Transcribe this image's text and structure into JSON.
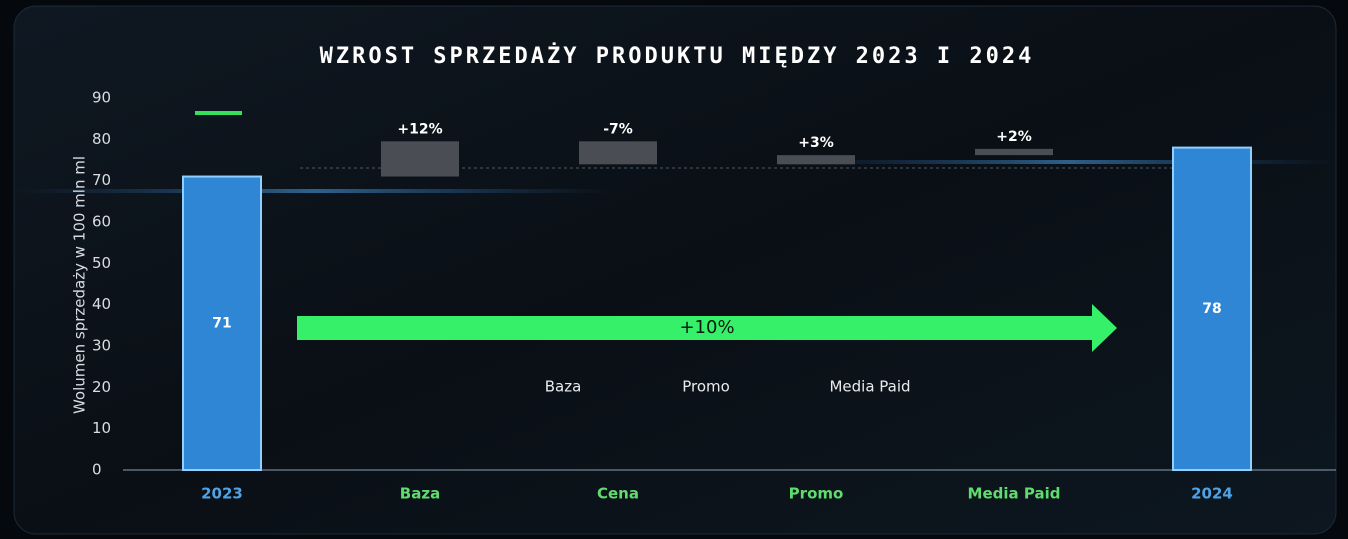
{
  "chart_data": {
    "type": "waterfall",
    "title": "WZROST SPRZEDAŻY PRODUKTU MIĘDZY 2023 I 2024",
    "y_label": "Wolumen sprzedaży w 100 mln ml",
    "categories": [
      "2023",
      "Baza",
      "Cena",
      "Promo",
      "Media Paid",
      "2024"
    ],
    "values": [
      71,
      12,
      -7,
      3,
      2,
      78
    ],
    "value_labels": [
      "71",
      "+12%",
      "-7%",
      "+3%",
      "+2%",
      "78"
    ],
    "is_total": [
      true,
      false,
      false,
      false,
      false,
      true
    ],
    "total_color": "#2f86d4",
    "change_color": "#4a4d53",
    "ylim": [
      0,
      90
    ],
    "yticks": [
      0,
      10,
      20,
      30,
      40,
      50,
      60,
      70,
      80,
      90
    ],
    "annotations": [
      "+10%",
      "Baza",
      "Promo",
      "Media Paid"
    ]
  }
}
